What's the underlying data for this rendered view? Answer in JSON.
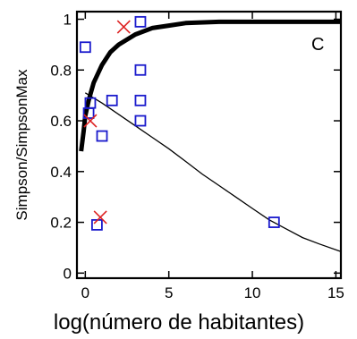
{
  "chart_data": {
    "type": "scatter",
    "title": "",
    "panel_label": "C",
    "xlabel": "log(número de habitantes)",
    "ylabel": "Simpson/SimpsonMax",
    "xlim": [
      -0.5,
      15.3
    ],
    "ylim": [
      -0.02,
      1.03
    ],
    "x_ticks": [
      0,
      5,
      10,
      15
    ],
    "y_ticks": [
      0,
      0.2,
      0.4,
      0.6,
      0.8,
      1
    ],
    "y_tick_labels": [
      "0",
      "0.2",
      "0.4",
      "0.6",
      "0.8",
      "1"
    ],
    "grid": false,
    "colors": {
      "squares": "#1a1acc",
      "crosses": "#dd2222",
      "curves": "#000000"
    },
    "squares": [
      {
        "x": 0.0,
        "y": 0.89
      },
      {
        "x": 0.3,
        "y": 0.67
      },
      {
        "x": 0.2,
        "y": 0.63
      },
      {
        "x": 0.7,
        "y": 0.19
      },
      {
        "x": 1.0,
        "y": 0.54
      },
      {
        "x": 1.6,
        "y": 0.68
      },
      {
        "x": 3.3,
        "y": 0.99
      },
      {
        "x": 3.3,
        "y": 0.8
      },
      {
        "x": 3.3,
        "y": 0.68
      },
      {
        "x": 3.3,
        "y": 0.6
      },
      {
        "x": 11.3,
        "y": 0.2
      }
    ],
    "crosses": [
      {
        "x": 0.3,
        "y": 0.6
      },
      {
        "x": 0.9,
        "y": 0.22
      },
      {
        "x": 2.3,
        "y": 0.97
      }
    ],
    "thick_curve": [
      {
        "x": -0.25,
        "y": 0.48
      },
      {
        "x": -0.1,
        "y": 0.56
      },
      {
        "x": 0.0,
        "y": 0.62
      },
      {
        "x": 0.2,
        "y": 0.68
      },
      {
        "x": 0.5,
        "y": 0.75
      },
      {
        "x": 1.0,
        "y": 0.82
      },
      {
        "x": 1.5,
        "y": 0.87
      },
      {
        "x": 2.0,
        "y": 0.9
      },
      {
        "x": 3.0,
        "y": 0.94
      },
      {
        "x": 4.0,
        "y": 0.965
      },
      {
        "x": 5.0,
        "y": 0.975
      },
      {
        "x": 6.0,
        "y": 0.985
      },
      {
        "x": 8.0,
        "y": 0.99
      },
      {
        "x": 10.0,
        "y": 0.99
      },
      {
        "x": 12.0,
        "y": 0.99
      },
      {
        "x": 15.3,
        "y": 0.99
      }
    ],
    "thin_curve": [
      {
        "x": 0.0,
        "y": 0.71
      },
      {
        "x": 1.0,
        "y": 0.67
      },
      {
        "x": 2.0,
        "y": 0.625
      },
      {
        "x": 3.0,
        "y": 0.58
      },
      {
        "x": 4.0,
        "y": 0.535
      },
      {
        "x": 5.0,
        "y": 0.49
      },
      {
        "x": 6.0,
        "y": 0.44
      },
      {
        "x": 7.0,
        "y": 0.39
      },
      {
        "x": 8.0,
        "y": 0.345
      },
      {
        "x": 9.0,
        "y": 0.3
      },
      {
        "x": 10.0,
        "y": 0.255
      },
      {
        "x": 11.0,
        "y": 0.21
      },
      {
        "x": 12.0,
        "y": 0.175
      },
      {
        "x": 13.0,
        "y": 0.14
      },
      {
        "x": 14.0,
        "y": 0.115
      },
      {
        "x": 15.3,
        "y": 0.085
      }
    ]
  }
}
